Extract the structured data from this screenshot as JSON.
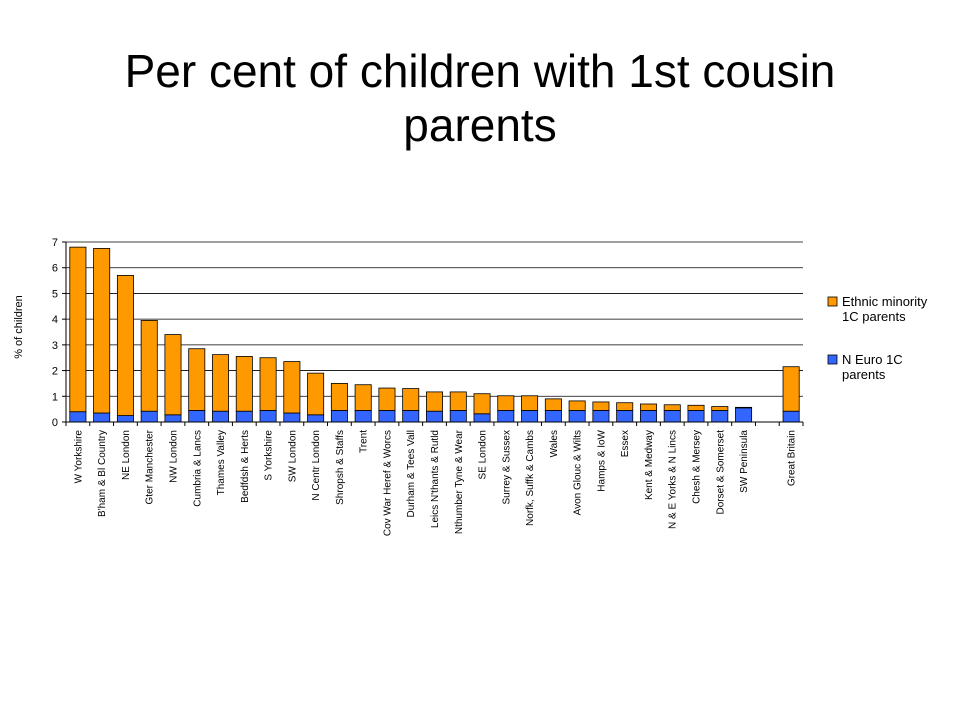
{
  "slide": {
    "title": "Per cent of children with 1st cousin parents"
  },
  "chart_data": {
    "type": "bar",
    "stacked": true,
    "title": "",
    "xlabel": "",
    "ylabel": "% of children",
    "ylim": [
      0,
      7
    ],
    "yticks": [
      0,
      1,
      2,
      3,
      4,
      5,
      6,
      7
    ],
    "grid": true,
    "legend_position": "right",
    "categories": [
      "W Yorkshire",
      "B'ham & Bl Country",
      "NE London",
      "Gter Manchester",
      "NW London",
      "Cumbria & Lancs",
      "Thames Valley",
      "Bedfdsh & Herts",
      "S Yorkshire",
      "SW London",
      "N Centr London",
      "Shropsh & Staffs",
      "Trent",
      "Cov War Heref & Worcs",
      "Durham & Tees Vall",
      "Leics N'thants & Rutld",
      "Nthumber Tyne & Wear",
      "SE London",
      "Surrey & Sussex",
      "Norfk, Suffk & Cambs",
      "Wales",
      "Avon Glouc & Wilts",
      "Hamps & IoW",
      "Essex",
      "Kent & Medway",
      "N & E Yorks & N Lincs",
      "Chesh & Mersey",
      "Dorset & Somerset",
      "SW Peninsula",
      "",
      "Great Britain"
    ],
    "series": [
      {
        "name": "N Euro 1C parents",
        "color": "#3366FF",
        "values": [
          0.4,
          0.35,
          0.25,
          0.42,
          0.28,
          0.45,
          0.42,
          0.42,
          0.45,
          0.35,
          0.28,
          0.45,
          0.45,
          0.45,
          0.45,
          0.42,
          0.45,
          0.32,
          0.45,
          0.45,
          0.45,
          0.45,
          0.45,
          0.45,
          0.45,
          0.45,
          0.45,
          0.45,
          0.55,
          null,
          0.42
        ]
      },
      {
        "name": "Ethnic minority 1C parents",
        "color": "#FF9900",
        "values": [
          6.4,
          6.4,
          5.45,
          3.53,
          3.12,
          2.4,
          2.2,
          2.13,
          2.05,
          2.0,
          1.62,
          1.05,
          1.0,
          0.87,
          0.85,
          0.75,
          0.72,
          0.78,
          0.57,
          0.57,
          0.45,
          0.37,
          0.33,
          0.3,
          0.25,
          0.22,
          0.2,
          0.15,
          0.02,
          null,
          1.73
        ]
      }
    ],
    "legend": [
      {
        "label": "Ethnic minority 1C parents",
        "color": "#FF9900"
      },
      {
        "label": "N Euro 1C parents",
        "color": "#3366FF"
      }
    ]
  }
}
